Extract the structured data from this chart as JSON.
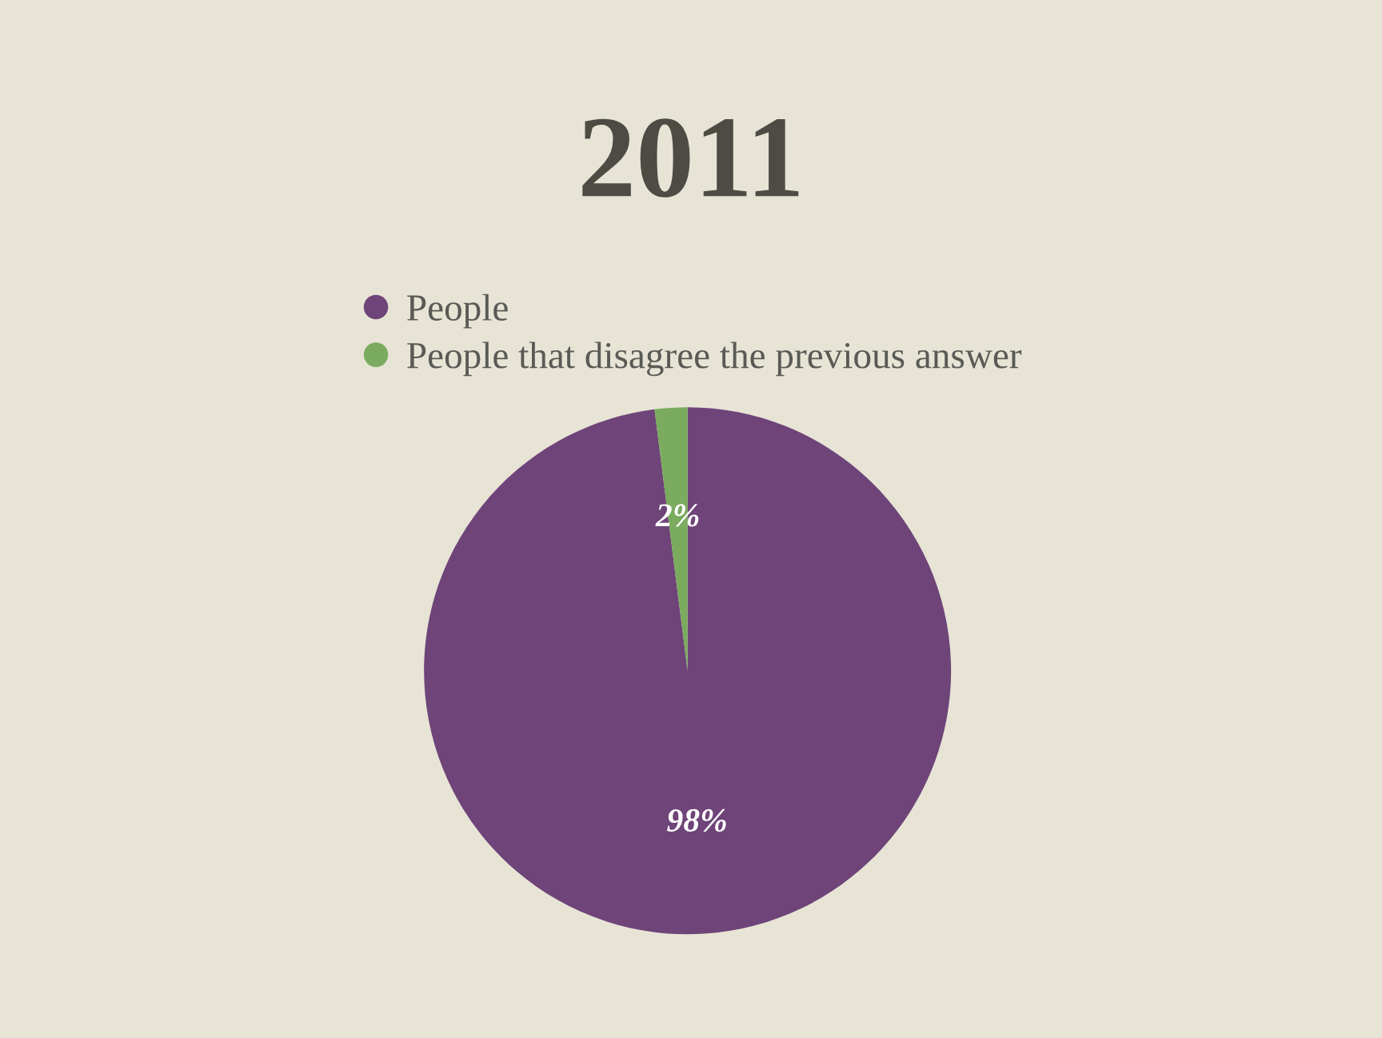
{
  "chart_data": {
    "type": "pie",
    "title": "2011",
    "categories": [
      "People",
      "People that disagree the previous answer"
    ],
    "values": [
      98,
      2
    ],
    "colors": [
      "#6e4479",
      "#7aab5e"
    ],
    "value_labels": [
      "98%",
      "2%"
    ],
    "legend": "top"
  }
}
